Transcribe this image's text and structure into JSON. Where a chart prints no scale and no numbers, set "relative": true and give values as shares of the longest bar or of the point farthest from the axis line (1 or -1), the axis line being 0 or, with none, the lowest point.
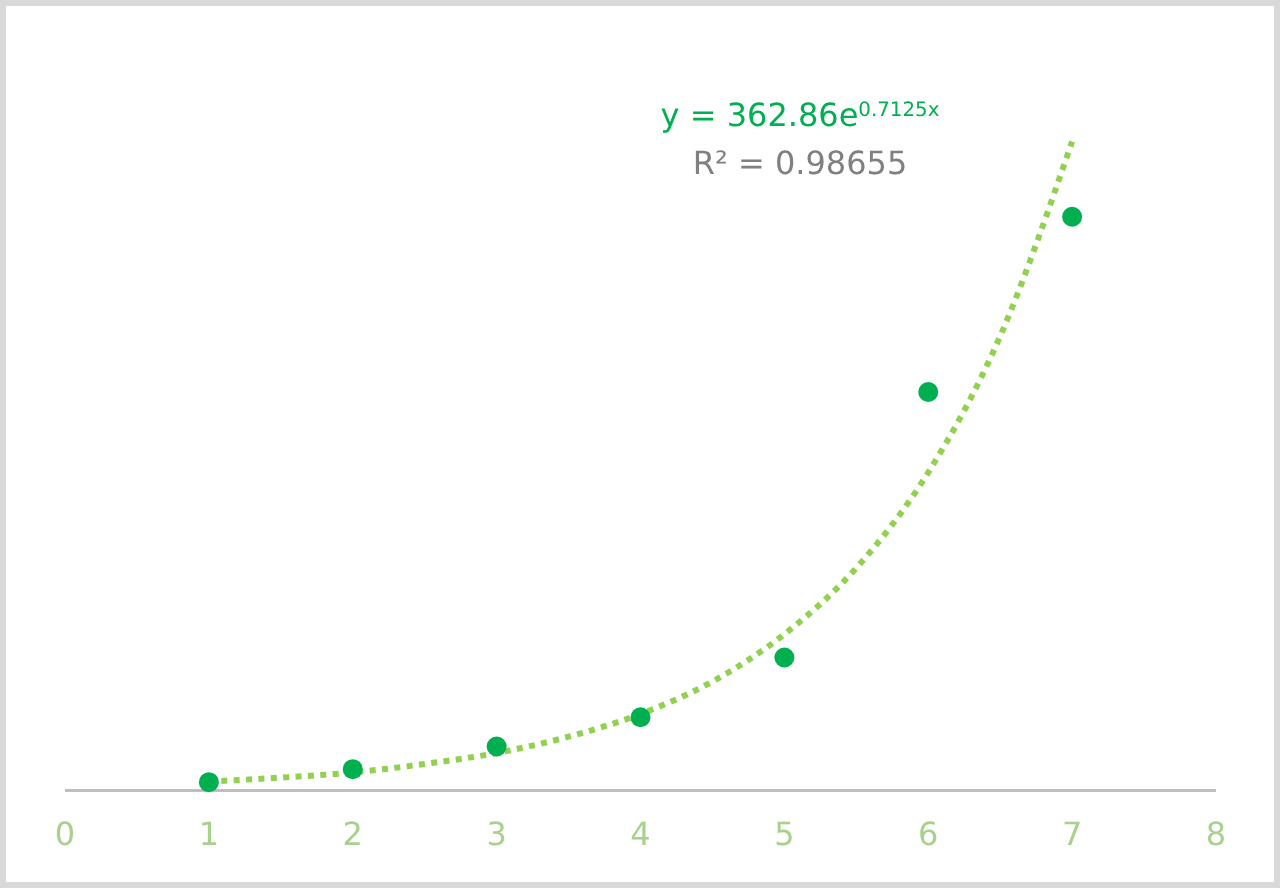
{
  "chart_data": {
    "type": "scatter",
    "relative": true,
    "xlim": [
      0,
      8
    ],
    "xticks": [
      0,
      1,
      2,
      3,
      4,
      5,
      6,
      7,
      8
    ],
    "tick_labels": "x",
    "grid": false,
    "annotations": [
      "y = 362.86e$^{0.7125x}$",
      "R² = 0.98655"
    ],
    "series": [
      {
        "color": "#00b050",
        "marker": "circle",
        "x": [
          1,
          2,
          3,
          4,
          5,
          6,
          7
        ],
        "values": [
          0.013,
          0.033,
          0.068,
          0.113,
          0.205,
          0.614,
          0.884
        ]
      },
      {
        "type": "line",
        "color": "#92d050",
        "marker": "none",
        "line_style": "dotted",
        "x": [
          1,
          1.5,
          2,
          2.5,
          3,
          3.5,
          4,
          4.5,
          5,
          5.5,
          6,
          6.5,
          7
        ],
        "values": [
          0.014,
          0.02,
          0.028,
          0.041,
          0.058,
          0.083,
          0.118,
          0.168,
          0.241,
          0.343,
          0.49,
          0.7,
          1
        ]
      }
    ]
  }
}
